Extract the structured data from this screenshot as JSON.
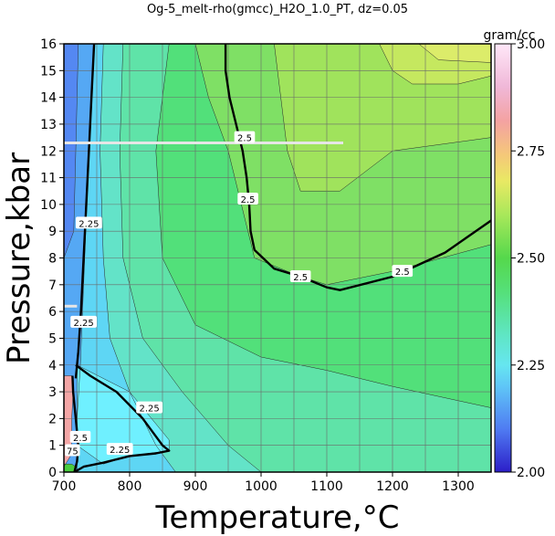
{
  "chart_data": {
    "type": "heatmap",
    "title": "Og-5_melt-rho(gmcc)_H2O_1.0_PT, dz=0.05",
    "xlabel": "Temperature,°C",
    "ylabel": "Pressure,kbar",
    "xlim": [
      700,
      1350
    ],
    "ylim": [
      0,
      16
    ],
    "x_ticks": [
      700,
      800,
      900,
      1000,
      1100,
      1200,
      1300
    ],
    "y_ticks": [
      0,
      1,
      2,
      3,
      4,
      5,
      6,
      7,
      8,
      9,
      10,
      11,
      12,
      13,
      14,
      15,
      16
    ],
    "x_gridline_step": 50,
    "y_gridline_step": 1,
    "grid": true,
    "colorbar": {
      "label": "gram/cc",
      "range": [
        2.0,
        3.0
      ],
      "ticks": [
        "2.00",
        "2.25",
        "2.50",
        "2.75",
        "3.00"
      ],
      "tick_values": [
        2.0,
        2.25,
        2.5,
        2.75,
        3.0
      ],
      "placement": "right",
      "stops": [
        {
          "value": 2.0,
          "color": "#2c1ec8"
        },
        {
          "value": 2.1,
          "color": "#4f7bf2"
        },
        {
          "value": 2.2,
          "color": "#5fc6f7"
        },
        {
          "value": 2.25,
          "color": "#66e6f0"
        },
        {
          "value": 2.32,
          "color": "#5fe6c4"
        },
        {
          "value": 2.42,
          "color": "#55e07a"
        },
        {
          "value": 2.5,
          "color": "#55d84c"
        },
        {
          "value": 2.6,
          "color": "#a8e85a"
        },
        {
          "value": 2.68,
          "color": "#e9e964"
        },
        {
          "value": 2.74,
          "color": "#f5c879"
        },
        {
          "value": 2.82,
          "color": "#f4a2a2"
        },
        {
          "value": 2.9,
          "color": "#f0b8d8"
        },
        {
          "value": 3.0,
          "color": "#ffe8f8"
        }
      ]
    },
    "regions": [
      {
        "value": 2.46,
        "color": "#52e07a",
        "points": [
          [
            700,
            0
          ],
          [
            1350,
            0
          ],
          [
            1350,
            16
          ],
          [
            700,
            16
          ]
        ]
      },
      {
        "value": 2.38,
        "color": "#5fe3a8",
        "points": [
          [
            700,
            0
          ],
          [
            1350,
            0
          ],
          [
            1350,
            2.4
          ],
          [
            1200,
            3.2
          ],
          [
            1100,
            3.8
          ],
          [
            1000,
            4.3
          ],
          [
            900,
            5.5
          ],
          [
            850,
            8
          ],
          [
            840,
            12
          ],
          [
            860,
            16
          ],
          [
            700,
            16
          ]
        ]
      },
      {
        "value": 2.3,
        "color": "#63e3c8",
        "points": [
          [
            700,
            0
          ],
          [
            1000,
            0
          ],
          [
            950,
            1
          ],
          [
            880,
            3
          ],
          [
            820,
            5
          ],
          [
            790,
            8
          ],
          [
            785,
            12
          ],
          [
            790,
            16
          ],
          [
            700,
            16
          ]
        ]
      },
      {
        "value": 2.2,
        "color": "#5ed6f4",
        "points": [
          [
            700,
            0
          ],
          [
            870,
            0
          ],
          [
            840,
            1
          ],
          [
            800,
            3
          ],
          [
            770,
            5
          ],
          [
            760,
            8
          ],
          [
            755,
            12
          ],
          [
            760,
            16
          ],
          [
            700,
            16
          ]
        ]
      },
      {
        "value": 2.1,
        "color": "#55a8f4",
        "points": [
          [
            700,
            0
          ],
          [
            720,
            0
          ],
          [
            720,
            2
          ],
          [
            725,
            4
          ],
          [
            730,
            7
          ],
          [
            735,
            10
          ],
          [
            740,
            13
          ],
          [
            745,
            16
          ],
          [
            700,
            16
          ]
        ]
      },
      {
        "value": 2.05,
        "color": "#5488f2",
        "points": [
          [
            700,
            8
          ],
          [
            715,
            9
          ],
          [
            718,
            12
          ],
          [
            722,
            16
          ],
          [
            700,
            16
          ]
        ]
      },
      {
        "value": 2.56,
        "color": "#7fe065",
        "points": [
          [
            900,
            16
          ],
          [
            920,
            14
          ],
          [
            950,
            12
          ],
          [
            970,
            10
          ],
          [
            990,
            8
          ],
          [
            1060,
            7.3
          ],
          [
            1100,
            7
          ],
          [
            1200,
            7.5
          ],
          [
            1350,
            8.5
          ],
          [
            1350,
            16
          ]
        ]
      },
      {
        "value": 2.6,
        "color": "#a0e35c",
        "points": [
          [
            1020,
            16
          ],
          [
            1030,
            14
          ],
          [
            1040,
            12
          ],
          [
            1060,
            10.5
          ],
          [
            1120,
            10.5
          ],
          [
            1200,
            12
          ],
          [
            1350,
            12.5
          ],
          [
            1350,
            16
          ]
        ]
      },
      {
        "value": 2.64,
        "color": "#c5e85f",
        "points": [
          [
            1180,
            16
          ],
          [
            1200,
            15
          ],
          [
            1230,
            14.5
          ],
          [
            1300,
            14.5
          ],
          [
            1350,
            14.8
          ],
          [
            1350,
            16
          ]
        ]
      },
      {
        "value": 2.7,
        "color": "#dcec6a",
        "points": [
          [
            1240,
            16
          ],
          [
            1270,
            15.4
          ],
          [
            1350,
            15.3
          ],
          [
            1350,
            16
          ]
        ]
      },
      {
        "value": 2.25,
        "color": "#6ff0ff",
        "points": [
          [
            720,
            4
          ],
          [
            800,
            3
          ],
          [
            860,
            1.2
          ],
          [
            860,
            0.8
          ],
          [
            800,
            0.6
          ],
          [
            760,
            0.3
          ],
          [
            720,
            1
          ]
        ]
      },
      {
        "value": 2.82,
        "color": "#f4a6a6",
        "points": [
          [
            700,
            0.2
          ],
          [
            710,
            0.6
          ],
          [
            712,
            1.2
          ],
          [
            712,
            2
          ],
          [
            714,
            3
          ],
          [
            712,
            3.6
          ],
          [
            700,
            3.6
          ]
        ]
      },
      {
        "value": 2.5,
        "color": "#4acd3e",
        "points": [
          [
            700,
            0
          ],
          [
            716,
            0
          ],
          [
            718,
            0.2
          ],
          [
            712,
            0.3
          ],
          [
            700,
            0.3
          ]
        ]
      }
    ],
    "contour_lines": [
      {
        "value": 2.5,
        "bold": true,
        "points": [
          [
            946,
            16
          ],
          [
            946,
            15
          ],
          [
            952,
            14
          ],
          [
            962,
            13
          ],
          [
            972,
            12
          ],
          [
            978,
            11
          ],
          [
            982,
            10
          ],
          [
            984,
            9
          ],
          [
            990,
            8.3
          ],
          [
            1020,
            7.6
          ],
          [
            1060,
            7.3
          ],
          [
            1100,
            6.9
          ],
          [
            1120,
            6.8
          ],
          [
            1200,
            7.3
          ],
          [
            1280,
            8.2
          ],
          [
            1350,
            9.4
          ]
        ]
      },
      {
        "value": 2.25,
        "bold": true,
        "points": [
          [
            746,
            16
          ],
          [
            742,
            14
          ],
          [
            738,
            12
          ],
          [
            734,
            10
          ],
          [
            730,
            8
          ],
          [
            726,
            6
          ],
          [
            722,
            4.5
          ],
          [
            718,
            3.5
          ]
        ]
      },
      {
        "value": 2.25,
        "bold": true,
        "points": [
          [
            718,
            4
          ],
          [
            740,
            3.6
          ],
          [
            780,
            3
          ],
          [
            820,
            2
          ],
          [
            850,
            1
          ],
          [
            860,
            0.8
          ],
          [
            840,
            0.7
          ],
          [
            800,
            0.6
          ],
          [
            760,
            0.35
          ],
          [
            730,
            0.2
          ],
          [
            716,
            0
          ]
        ]
      },
      {
        "value": 2.5,
        "bold": true,
        "points": [
          [
            716,
            0
          ],
          [
            720,
            0.4
          ],
          [
            722,
            1
          ],
          [
            718,
            2
          ],
          [
            714,
            3
          ],
          [
            713,
            3.6
          ]
        ]
      }
    ],
    "contour_labels": [
      {
        "text": "2.5",
        "x": 975,
        "y": 12.5
      },
      {
        "text": "2.5",
        "x": 980,
        "y": 10.2
      },
      {
        "text": "2.5",
        "x": 1060,
        "y": 7.3
      },
      {
        "text": "2.5",
        "x": 1215,
        "y": 7.5
      },
      {
        "text": "2.25",
        "x": 738,
        "y": 9.3
      },
      {
        "text": "2.25",
        "x": 730,
        "y": 5.6
      },
      {
        "text": "2.25",
        "x": 830,
        "y": 2.4
      },
      {
        "text": "2.25",
        "x": 785,
        "y": 0.85
      },
      {
        "text": "2.5",
        "x": 725,
        "y": 1.3
      },
      {
        "text": "75",
        "x": 713,
        "y": 0.8
      }
    ],
    "highlight_lines": [
      {
        "color": "#e6e6e6",
        "points": [
          [
            700,
            12.3
          ],
          [
            1125,
            12.3
          ]
        ]
      },
      {
        "color": "#e6e6e6",
        "points": [
          [
            700,
            6.2
          ],
          [
            720,
            6.2
          ]
        ]
      }
    ]
  }
}
